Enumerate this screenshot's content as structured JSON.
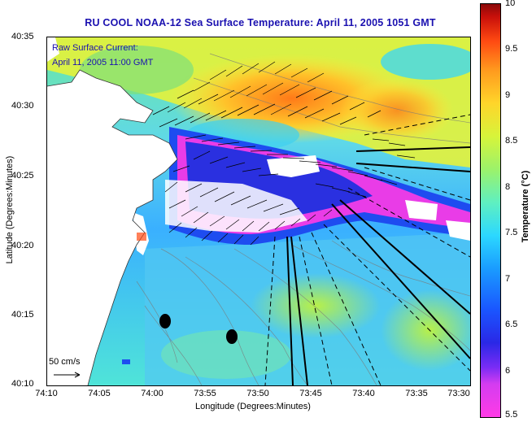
{
  "title": "RU COOL  NOAA-12  Sea Surface Temperature:  April 11, 2005 1051 GMT",
  "current_note": {
    "line1": "Raw Surface Current:",
    "line2": "April 11, 2005 11:00 GMT"
  },
  "scale_label": "50 cm/s",
  "axes": {
    "xlabel": "Longitude (Degrees:Minutes)",
    "ylabel": "Latitude (Degrees:Minutes)",
    "xticks": [
      "74:10",
      "74:05",
      "74:00",
      "73:55",
      "73:50",
      "73:45",
      "73:40",
      "73:35",
      "73:30"
    ],
    "yticks": [
      "40:35",
      "40:30",
      "40:25",
      "40:20",
      "40:15",
      "40:10"
    ]
  },
  "colorbar": {
    "label": "Temperature (°C)",
    "ticks": [
      "10",
      "9.5",
      "9",
      "8.5",
      "8",
      "7.5",
      "7",
      "6.5",
      "6",
      "5.5"
    ],
    "range": [
      5.5,
      10
    ]
  },
  "colors": {
    "title": "#1a10b0",
    "land": "#ffffff",
    "warm": "#ff9a1e",
    "cold": "#1a56ff",
    "front": "#ff3be6"
  }
}
